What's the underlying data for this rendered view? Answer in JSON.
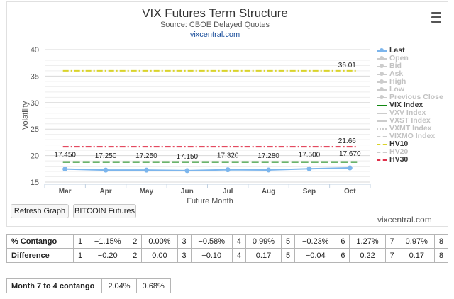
{
  "chart": {
    "title": "VIX Futures Term Structure",
    "subtitle": "Source: CBOE Delayed Quotes",
    "source_link": "vixcentral.com",
    "menu_icon": "hamburger-menu-icon"
  },
  "chart_data": {
    "type": "line",
    "categories": [
      "Mar",
      "Apr",
      "May",
      "Jun",
      "Jul",
      "Aug",
      "Sep",
      "Oct"
    ],
    "series": [
      {
        "name": "Last",
        "values": [
          17.45,
          17.25,
          17.25,
          17.15,
          17.32,
          17.28,
          17.5,
          17.67
        ],
        "labels": [
          "17.450",
          "17.250",
          "17.250",
          "17.150",
          "17.320",
          "17.280",
          "17.500",
          "17.670"
        ],
        "color": "#7cb5ec"
      }
    ],
    "reference_lines": [
      {
        "name": "VIX Index",
        "value": 18.8,
        "color": "#118811",
        "style": "dashed"
      },
      {
        "name": "HV10",
        "value": 36.01,
        "label": "36.01",
        "color": "#d9d32a",
        "style": "dash-dot"
      },
      {
        "name": "HV30",
        "value": 21.66,
        "label": "21.66",
        "color": "#e0304a",
        "style": "dash-dot"
      }
    ],
    "xlabel": "Future Month",
    "ylabel": "Volatility",
    "ylim": [
      15,
      40
    ],
    "yticks": [
      15,
      20,
      25,
      30,
      35,
      40
    ],
    "grid": true,
    "legend_position": "right"
  },
  "legend": {
    "items": [
      {
        "label": "Last",
        "active": true,
        "color": "#7cb5ec",
        "style": "solid",
        "marker": true
      },
      {
        "label": "Open",
        "active": false,
        "color": "#cccccc",
        "style": "solid",
        "marker": true
      },
      {
        "label": "Bid",
        "active": false,
        "color": "#cccccc",
        "style": "solid",
        "marker": true
      },
      {
        "label": "Ask",
        "active": false,
        "color": "#cccccc",
        "style": "solid",
        "marker": true
      },
      {
        "label": "High",
        "active": false,
        "color": "#cccccc",
        "style": "solid",
        "marker": true
      },
      {
        "label": "Low",
        "active": false,
        "color": "#cccccc",
        "style": "solid",
        "marker": true
      },
      {
        "label": "Previous Close",
        "active": false,
        "color": "#cccccc",
        "style": "solid",
        "marker": true
      },
      {
        "label": "VIX Index",
        "active": true,
        "color": "#118811",
        "style": "solid",
        "marker": false
      },
      {
        "label": "VXV Index",
        "active": false,
        "color": "#cccccc",
        "style": "solid",
        "marker": false
      },
      {
        "label": "VXST Index",
        "active": false,
        "color": "#cccccc",
        "style": "solid",
        "marker": false
      },
      {
        "label": "VXMT Index",
        "active": false,
        "color": "#cccccc",
        "style": "dotted",
        "marker": false
      },
      {
        "label": "VIXMO Index",
        "active": false,
        "color": "#cccccc",
        "style": "dashed",
        "marker": false
      },
      {
        "label": "HV10",
        "active": true,
        "color": "#d9d32a",
        "style": "dashed",
        "marker": false
      },
      {
        "label": "HV20",
        "active": false,
        "color": "#cccccc",
        "style": "dashed",
        "marker": false
      },
      {
        "label": "HV30",
        "active": true,
        "color": "#e0304a",
        "style": "dashed",
        "marker": false
      }
    ]
  },
  "buttons": {
    "refresh": "Refresh Graph",
    "bitcoin": "BITCOIN Futures"
  },
  "credit": "vixcentral.com",
  "contango_table": {
    "label": "% Contango",
    "cells": [
      {
        "n": "1",
        "v": "−1.15%"
      },
      {
        "n": "2",
        "v": "0.00%"
      },
      {
        "n": "3",
        "v": "−0.58%"
      },
      {
        "n": "4",
        "v": "0.99%"
      },
      {
        "n": "5",
        "v": "−0.23%"
      },
      {
        "n": "6",
        "v": "1.27%"
      },
      {
        "n": "7",
        "v": "0.97%"
      }
    ],
    "trailing": "8"
  },
  "difference_table": {
    "label": "Difference",
    "cells": [
      {
        "n": "1",
        "v": "−0.20"
      },
      {
        "n": "2",
        "v": "0.00"
      },
      {
        "n": "3",
        "v": "−0.10"
      },
      {
        "n": "4",
        "v": "0.17"
      },
      {
        "n": "5",
        "v": "−0.04"
      },
      {
        "n": "6",
        "v": "0.22"
      },
      {
        "n": "7",
        "v": "0.17"
      }
    ],
    "trailing": "8"
  },
  "month_table": {
    "label": "Month 7 to 4 contango",
    "values": [
      "2.04%",
      "0.68%"
    ]
  }
}
